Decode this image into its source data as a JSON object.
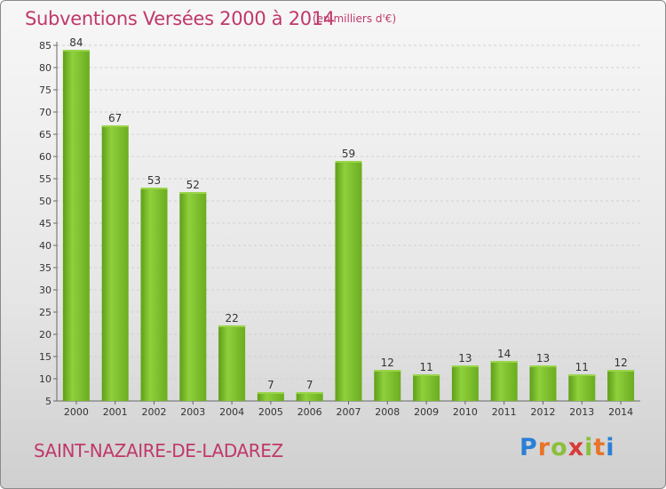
{
  "header": {
    "title": "Subventions Versées 2000 à 2014",
    "subtitle": "(en milliers d'€)"
  },
  "footer": {
    "commune": "SAINT-NAZAIRE-DE-LADAREZ",
    "logo_letters": [
      "P",
      "r",
      "o",
      "x",
      "i",
      "t",
      "i"
    ],
    "logo_colors": [
      "#2b7fd6",
      "#e8742a",
      "#8bbf3a",
      "#d83a3a",
      "#8bbf3a",
      "#e8742a",
      "#2b7fd6"
    ]
  },
  "chart_data": {
    "type": "bar",
    "categories": [
      "2000",
      "2001",
      "2002",
      "2003",
      "2004",
      "2005",
      "2006",
      "2007",
      "2008",
      "2009",
      "2010",
      "2011",
      "2012",
      "2013",
      "2014"
    ],
    "values": [
      84,
      67,
      53,
      52,
      22,
      7,
      7,
      59,
      12,
      11,
      13,
      14,
      13,
      11,
      12
    ],
    "ylim": [
      5,
      85
    ],
    "yticks": [
      5,
      10,
      15,
      20,
      25,
      30,
      35,
      40,
      45,
      50,
      55,
      60,
      65,
      70,
      75,
      80,
      85
    ],
    "grid": true,
    "bar_color": "#7cc22b",
    "bar_color_light": "#9ad44a",
    "bar_color_dark": "#5e9e18"
  }
}
